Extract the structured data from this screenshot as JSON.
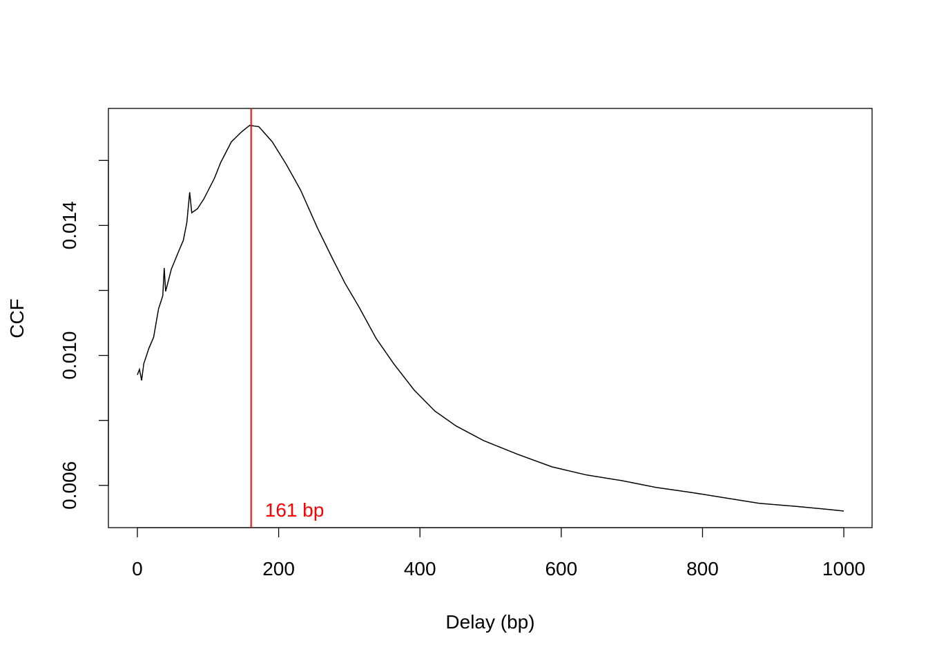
{
  "chart_data": {
    "type": "line",
    "title": "",
    "xlabel": "Delay (bp)",
    "ylabel": "CCF",
    "xlim": [
      -41,
      1040
    ],
    "ylim": [
      0.0047,
      0.0176
    ],
    "x_ticks": [
      0,
      200,
      400,
      600,
      800,
      1000
    ],
    "x_tick_labels": [
      "0",
      "200",
      "400",
      "600",
      "800",
      "1000"
    ],
    "y_ticks": [
      0.006,
      0.008,
      0.01,
      0.012,
      0.014,
      0.016
    ],
    "y_tick_labels": [
      "0.006",
      "",
      "0.010",
      "",
      "0.014",
      ""
    ],
    "grid": false,
    "line_color": "#000000",
    "series": [
      {
        "x": [
          0,
          3,
          6,
          9,
          16,
          23,
          30,
          36,
          38,
          40,
          48,
          58,
          65,
          70,
          74,
          77,
          85,
          94,
          109,
          118,
          133,
          148,
          159,
          172,
          191,
          211,
          231,
          255,
          275,
          294,
          314,
          338,
          363,
          392,
          421,
          451,
          490,
          538,
          587,
          636,
          685,
          734,
          782,
          831,
          880,
          929,
          978,
          1000
        ],
        "y": [
          0.0094,
          0.00957,
          0.00923,
          0.00974,
          0.0102,
          0.01056,
          0.01143,
          0.01184,
          0.01269,
          0.01197,
          0.01265,
          0.01318,
          0.01354,
          0.01409,
          0.01502,
          0.01439,
          0.01451,
          0.01481,
          0.01545,
          0.01594,
          0.01657,
          0.01689,
          0.01708,
          0.01704,
          0.01657,
          0.01587,
          0.01509,
          0.01392,
          0.01303,
          0.01222,
          0.01148,
          0.01052,
          0.00974,
          0.00893,
          0.00829,
          0.00783,
          0.00738,
          0.00696,
          0.00657,
          0.00632,
          0.00615,
          0.00594,
          0.00579,
          0.00562,
          0.00545,
          0.00536,
          0.00526,
          0.00521
        ]
      }
    ],
    "annotations": [
      {
        "type": "vline",
        "x": 161,
        "color": "#ff0000",
        "label": "161 bp"
      }
    ]
  }
}
